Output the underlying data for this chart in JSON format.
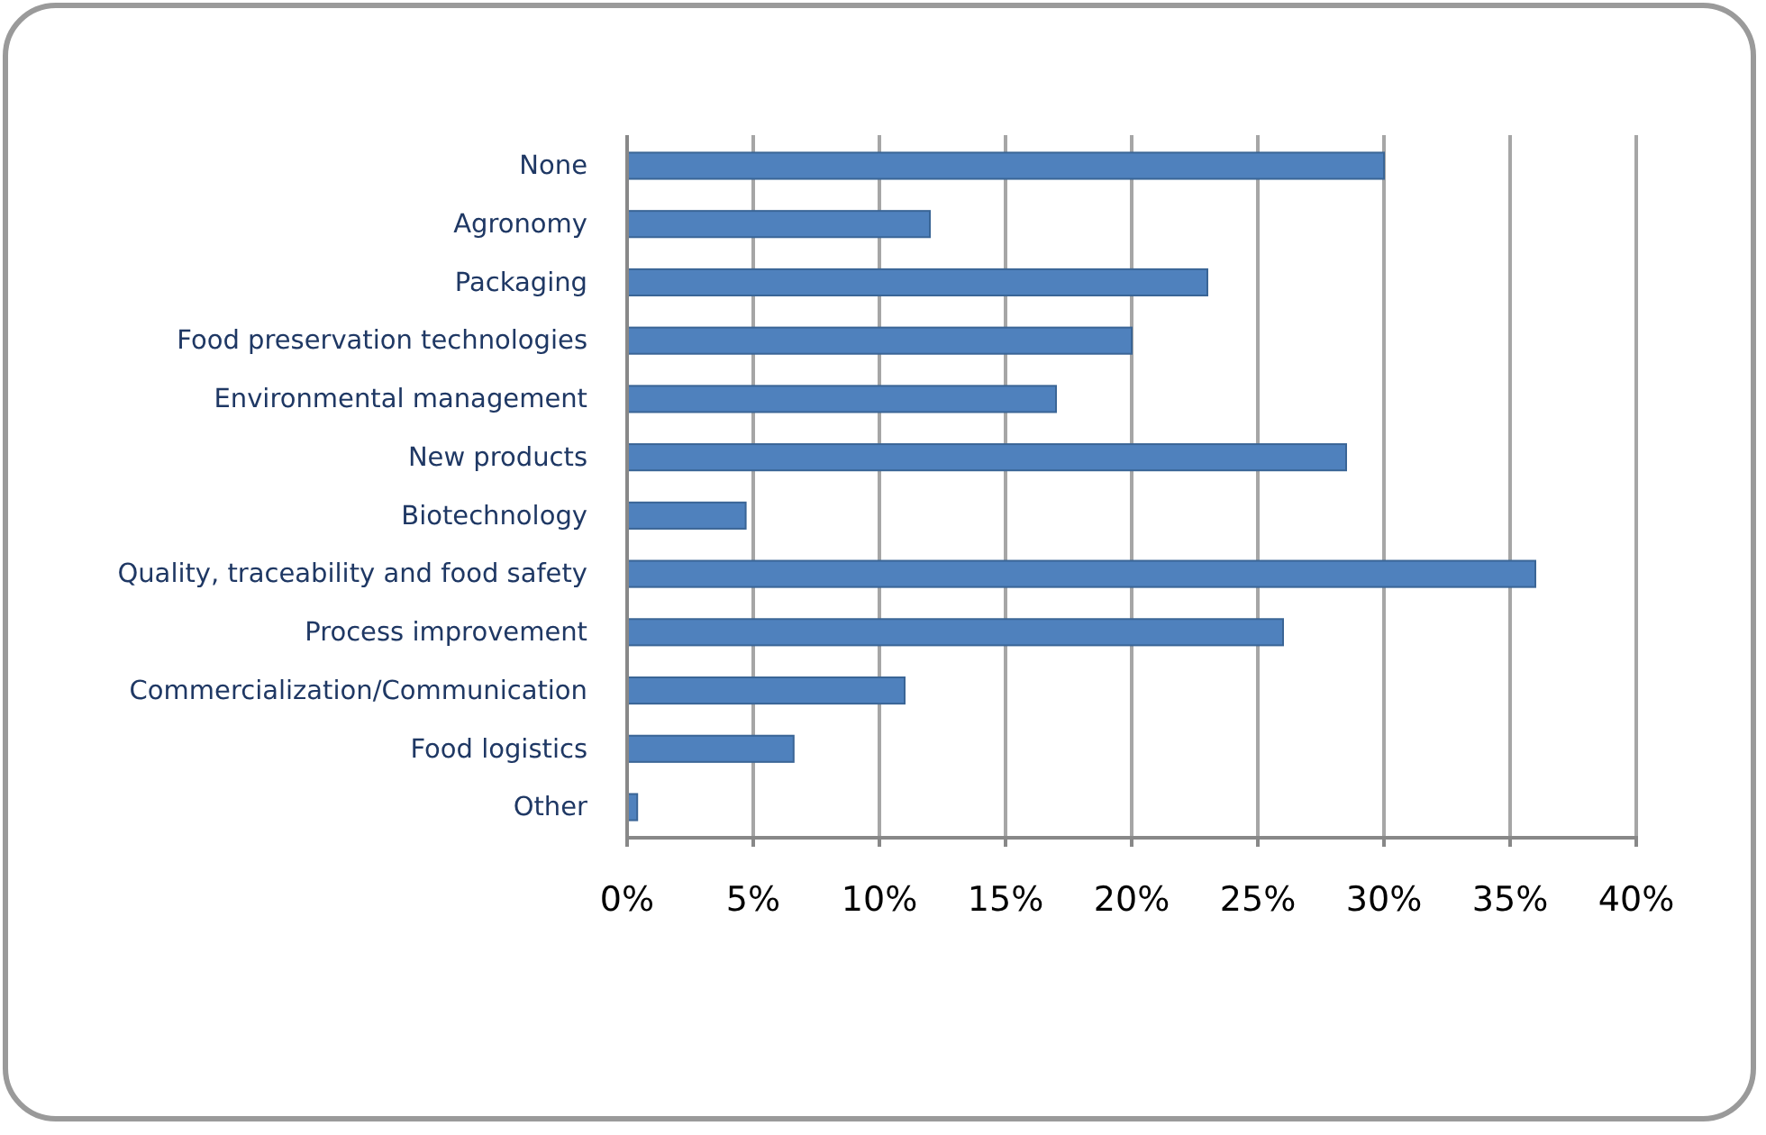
{
  "chart_data": {
    "type": "bar",
    "orientation": "horizontal",
    "categories": [
      "None",
      "Agronomy",
      "Packaging",
      "Food preservation technologies",
      "Environmental management",
      "New products",
      "Biotechnology",
      "Quality, traceability and food safety",
      "Process improvement",
      "Commercialization/Communication",
      "Food logistics",
      "Other"
    ],
    "values": [
      30,
      12,
      23,
      20,
      17,
      28.5,
      4.7,
      36,
      26,
      11,
      6.6,
      0.4
    ],
    "color": "#4f81bd",
    "xlim": [
      0,
      40
    ],
    "xticks": [
      {
        "value": 0,
        "label": "0%"
      },
      {
        "value": 5,
        "label": "5%"
      },
      {
        "value": 10,
        "label": "10%"
      },
      {
        "value": 15,
        "label": "15%"
      },
      {
        "value": 20,
        "label": "20%"
      },
      {
        "value": 25,
        "label": "25%"
      },
      {
        "value": 30,
        "label": "30%"
      },
      {
        "value": 35,
        "label": "35%"
      },
      {
        "value": 40,
        "label": "40%"
      }
    ],
    "grid": "x"
  }
}
